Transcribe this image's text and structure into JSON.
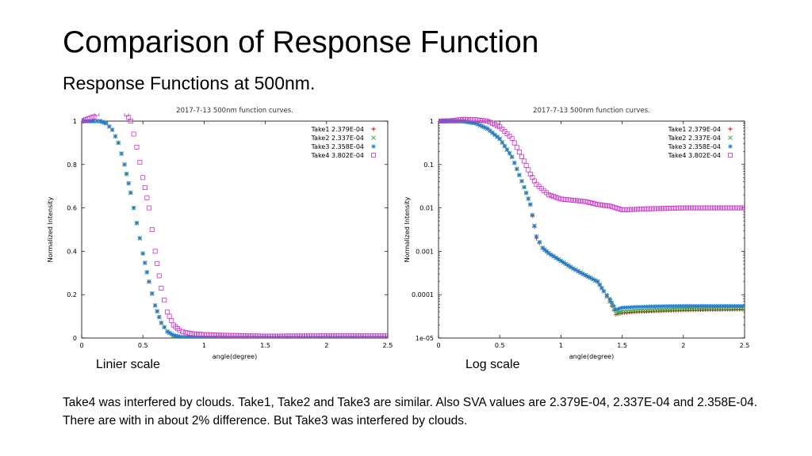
{
  "slide": {
    "title": "Comparison of Response Function",
    "subtitle": "Response Functions at 500nm.",
    "footnote": "Take4 was interfered by clouds. Take1, Take2 and Take3 are similar. Also SVA values are 2.379E-04, 2.337E-04 and 2.358E-04. There are with in about 2% difference. But Take3 was interfered by clouds."
  },
  "chart_data": [
    {
      "id": "linear",
      "type": "scatter",
      "title": "2017-7-13 500nm function curves.",
      "xlabel": "angle(degree)",
      "ylabel": "Normalized Intensity",
      "caption": "Linier scale",
      "xlim": [
        0,
        2.5
      ],
      "ylim": [
        0,
        1.0
      ],
      "yscale": "linear",
      "xticks": [
        0,
        0.5,
        1,
        1.5,
        2,
        2.5
      ],
      "xtick_labels": [
        "0",
        "0.5",
        "1",
        "1.5",
        "2",
        "2.5"
      ],
      "yticks": [
        0,
        0.2,
        0.4,
        0.6,
        0.8,
        1
      ],
      "ytick_labels": [
        "0",
        "0.2",
        "0.4",
        "0.6",
        "0.8",
        "1"
      ],
      "legend_position": "top-right",
      "series": [
        {
          "name": "Take1 2.379E-04",
          "marker": "plus",
          "color": "#cc0000",
          "x": [
            0,
            0.05,
            0.1,
            0.15,
            0.2,
            0.25,
            0.3,
            0.35,
            0.4,
            0.45,
            0.5,
            0.55,
            0.6,
            0.65,
            0.7,
            0.75,
            0.8,
            0.85,
            0.9,
            1.0,
            1.2,
            1.5,
            2.0,
            2.5
          ],
          "y": [
            1.0,
            1.0,
            1.0,
            1.0,
            0.99,
            0.96,
            0.9,
            0.8,
            0.67,
            0.53,
            0.39,
            0.26,
            0.15,
            0.07,
            0.03,
            0.012,
            0.006,
            0.003,
            0.002,
            0.001,
            0.0003,
            4e-05,
            5e-05,
            5e-05
          ]
        },
        {
          "name": "Take2 2.337E-04",
          "marker": "cross",
          "color": "#3a9e3a",
          "x": [
            0,
            0.05,
            0.1,
            0.15,
            0.2,
            0.25,
            0.3,
            0.35,
            0.4,
            0.45,
            0.5,
            0.55,
            0.6,
            0.65,
            0.7,
            0.75,
            0.8,
            0.85,
            0.9,
            1.0,
            1.2,
            1.5,
            2.0,
            2.5
          ],
          "y": [
            1.0,
            1.0,
            1.0,
            1.0,
            0.99,
            0.96,
            0.9,
            0.8,
            0.67,
            0.53,
            0.39,
            0.26,
            0.15,
            0.07,
            0.03,
            0.012,
            0.006,
            0.003,
            0.002,
            0.001,
            0.0003,
            4e-05,
            5e-05,
            5e-05
          ]
        },
        {
          "name": "Take3 2.358E-04",
          "marker": "star",
          "color": "#1f7fd6",
          "x": [
            0,
            0.05,
            0.1,
            0.15,
            0.2,
            0.25,
            0.3,
            0.35,
            0.4,
            0.45,
            0.5,
            0.55,
            0.6,
            0.65,
            0.7,
            0.75,
            0.8,
            0.85,
            0.9,
            1.0,
            1.2,
            1.5,
            2.0,
            2.5
          ],
          "y": [
            1.0,
            1.0,
            1.0,
            1.0,
            0.99,
            0.96,
            0.9,
            0.8,
            0.67,
            0.53,
            0.39,
            0.26,
            0.15,
            0.07,
            0.03,
            0.012,
            0.006,
            0.003,
            0.002,
            0.001,
            0.0003,
            5e-05,
            6e-05,
            6e-05
          ]
        },
        {
          "name": "Take4 3.802E-04",
          "marker": "square",
          "color": "#cc33cc",
          "x": [
            0,
            0.05,
            0.1,
            0.15,
            0.2,
            0.25,
            0.3,
            0.35,
            0.4,
            0.45,
            0.5,
            0.55,
            0.6,
            0.65,
            0.7,
            0.75,
            0.8,
            0.85,
            0.9,
            1.0,
            1.2,
            1.5,
            2.0,
            2.5
          ],
          "y": [
            1.0,
            1.01,
            1.02,
            1.05,
            1.1,
            1.1,
            1.08,
            1.05,
            1.0,
            0.88,
            0.74,
            0.6,
            0.4,
            0.23,
            0.12,
            0.06,
            0.035,
            0.025,
            0.02,
            0.016,
            0.012,
            0.009,
            0.01,
            0.01
          ]
        }
      ]
    },
    {
      "id": "log",
      "type": "scatter",
      "title": "2017-7-13 500nm function curves.",
      "xlabel": "angle(degree)",
      "ylabel": "Normalized Intensity",
      "caption": "Log scale",
      "xlim": [
        0,
        2.5
      ],
      "ylim": [
        1e-05,
        1
      ],
      "yscale": "log",
      "xticks": [
        0,
        0.5,
        1,
        1.5,
        2,
        2.5
      ],
      "xtick_labels": [
        "0",
        "0.5",
        "1",
        "1.5",
        "2",
        "2.5"
      ],
      "yticks": [
        1e-05,
        0.0001,
        0.001,
        0.01,
        0.1,
        1
      ],
      "ytick_labels": [
        "1e-05",
        "0.0001",
        "0.001",
        "0.01",
        "0.1",
        "1"
      ],
      "legend_position": "top-right",
      "series": [
        {
          "name": "Take1 2.379E-04",
          "marker": "plus",
          "color": "#cc0000",
          "x": [
            0,
            0.1,
            0.2,
            0.3,
            0.4,
            0.5,
            0.6,
            0.7,
            0.75,
            0.8,
            0.85,
            0.9,
            1.0,
            1.1,
            1.2,
            1.3,
            1.35,
            1.4,
            1.45,
            1.5,
            1.6,
            1.8,
            2.0,
            2.2,
            2.5
          ],
          "y": [
            1.0,
            1.0,
            0.99,
            0.9,
            0.67,
            0.39,
            0.15,
            0.03,
            0.012,
            0.002,
            0.0012,
            0.0009,
            0.0006,
            0.0004,
            0.00028,
            0.0002,
            0.00012,
            7e-05,
            3.5e-05,
            3.8e-05,
            4e-05,
            4.2e-05,
            4.4e-05,
            4.5e-05,
            4.6e-05
          ]
        },
        {
          "name": "Take2 2.337E-04",
          "marker": "cross",
          "color": "#3a9e3a",
          "x": [
            0,
            0.1,
            0.2,
            0.3,
            0.4,
            0.5,
            0.6,
            0.7,
            0.75,
            0.8,
            0.85,
            0.9,
            1.0,
            1.1,
            1.2,
            1.3,
            1.35,
            1.4,
            1.45,
            1.5,
            1.6,
            1.8,
            2.0,
            2.2,
            2.5
          ],
          "y": [
            1.0,
            1.0,
            0.99,
            0.9,
            0.67,
            0.39,
            0.15,
            0.03,
            0.012,
            0.0022,
            0.0012,
            0.0009,
            0.0006,
            0.0004,
            0.00028,
            0.0002,
            0.00012,
            7e-05,
            3.7e-05,
            4e-05,
            4.2e-05,
            4.4e-05,
            4.6e-05,
            4.7e-05,
            4.8e-05
          ]
        },
        {
          "name": "Take3 2.358E-04",
          "marker": "star",
          "color": "#1f7fd6",
          "x": [
            0,
            0.1,
            0.2,
            0.3,
            0.4,
            0.5,
            0.6,
            0.7,
            0.75,
            0.8,
            0.85,
            0.9,
            1.0,
            1.1,
            1.2,
            1.3,
            1.35,
            1.4,
            1.45,
            1.5,
            1.6,
            1.8,
            2.0,
            2.2,
            2.5
          ],
          "y": [
            1.0,
            1.0,
            0.99,
            0.9,
            0.67,
            0.39,
            0.15,
            0.03,
            0.012,
            0.0022,
            0.0012,
            0.0009,
            0.0006,
            0.0004,
            0.00028,
            0.0002,
            0.00012,
            8e-05,
            4.5e-05,
            5e-05,
            5.2e-05,
            5.4e-05,
            5.5e-05,
            5.5e-05,
            5.5e-05
          ]
        },
        {
          "name": "Take4 3.802E-04",
          "marker": "square",
          "color": "#cc33cc",
          "x": [
            0,
            0.1,
            0.2,
            0.3,
            0.4,
            0.5,
            0.6,
            0.7,
            0.75,
            0.8,
            0.9,
            1.0,
            1.1,
            1.2,
            1.3,
            1.4,
            1.5,
            1.7,
            2.0,
            2.2,
            2.5
          ],
          "y": [
            1.0,
            1.02,
            1.1,
            1.08,
            1.0,
            0.74,
            0.4,
            0.12,
            0.06,
            0.035,
            0.02,
            0.016,
            0.015,
            0.014,
            0.012,
            0.011,
            0.009,
            0.0095,
            0.01,
            0.01,
            0.01
          ]
        }
      ]
    }
  ]
}
